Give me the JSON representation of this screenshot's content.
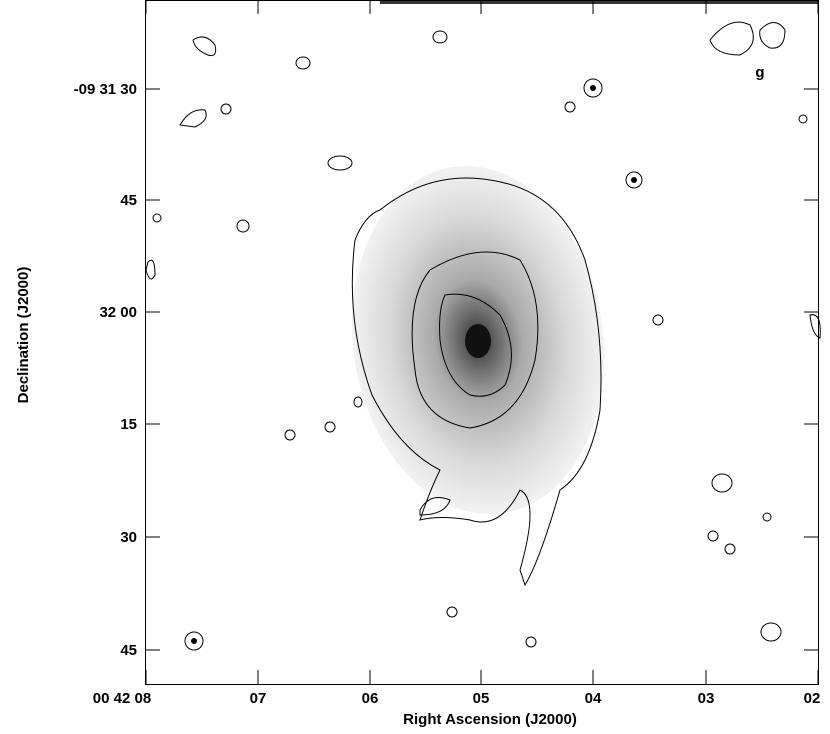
{
  "image": {
    "x_axis": {
      "label": "Right Ascension (J2000)",
      "ticks": [
        "00 42 08",
        "07",
        "06",
        "05",
        "04",
        "03",
        "02"
      ]
    },
    "y_axis": {
      "label": "Declination (J2000)",
      "ticks": [
        "-09 31 30",
        "45",
        "32 00",
        "15",
        "30",
        "45"
      ]
    },
    "annotation": "g"
  }
}
